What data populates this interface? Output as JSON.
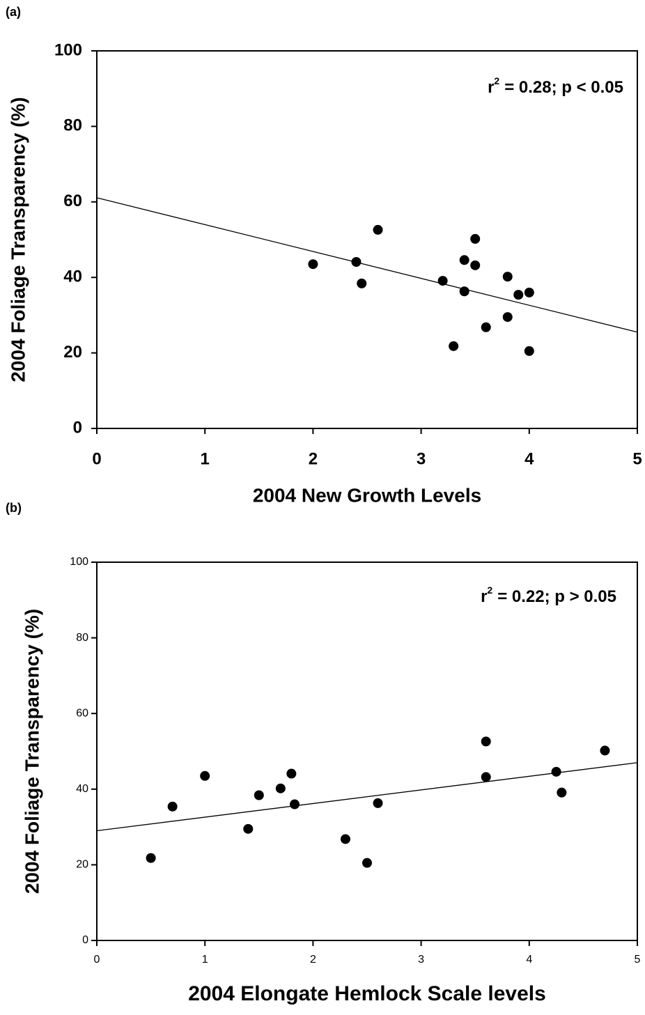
{
  "chart_data": [
    {
      "type": "scatter",
      "panel": "(a)",
      "xlabel": "2004 New Growth Levels",
      "ylabel": "2004 Foliage Transparency (%)",
      "annotation": {
        "text": "r",
        "superscript": "2",
        "rest": "= 0.28; p < 0.05"
      },
      "x": [
        2.0,
        2.4,
        2.45,
        2.6,
        3.2,
        3.4,
        3.4,
        3.5,
        3.5,
        3.3,
        3.6,
        3.8,
        3.8,
        3.9,
        4.0,
        4.0
      ],
      "values": [
        43.5,
        44.1,
        38.4,
        52.6,
        39.1,
        44.6,
        36.3,
        50.2,
        43.2,
        21.8,
        26.8,
        40.2,
        29.5,
        35.4,
        36.0,
        20.5
      ],
      "color": "#000000",
      "trendline": {
        "x": [
          0,
          5
        ],
        "values": [
          61.1,
          25.5
        ],
        "color": "#000000"
      },
      "xlim": [
        0,
        5
      ],
      "xticks": [
        0,
        1,
        2,
        3,
        4,
        5
      ],
      "ylim": [
        0,
        100
      ],
      "yticks": [
        0,
        20,
        40,
        60,
        80,
        100
      ]
    },
    {
      "type": "scatter",
      "panel": "(b)",
      "xlabel": "2004 Elongate Hemlock Scale levels",
      "ylabel": "2004 Foliage Transparency (%)",
      "annotation": {
        "text": "r",
        "superscript": "2",
        "rest": "= 0.22; p > 0.05"
      },
      "x": [
        0.5,
        0.7,
        1.0,
        1.4,
        1.5,
        1.7,
        1.8,
        1.83,
        2.3,
        2.5,
        2.6,
        3.6,
        3.6,
        4.25,
        4.3,
        4.7
      ],
      "values": [
        21.8,
        35.4,
        43.5,
        29.5,
        38.4,
        40.2,
        44.1,
        36.0,
        26.8,
        20.5,
        36.3,
        52.6,
        43.2,
        44.6,
        39.1,
        50.2
      ],
      "color": "#000000",
      "trendline": {
        "x": [
          0,
          5
        ],
        "values": [
          29.0,
          47.0
        ],
        "color": "#000000"
      },
      "xlim": [
        0,
        5
      ],
      "xticks": [
        0,
        1,
        2,
        3,
        4,
        5
      ],
      "ylim": [
        0,
        100
      ],
      "yticks": [
        0,
        20,
        40,
        60,
        80,
        100
      ]
    }
  ]
}
